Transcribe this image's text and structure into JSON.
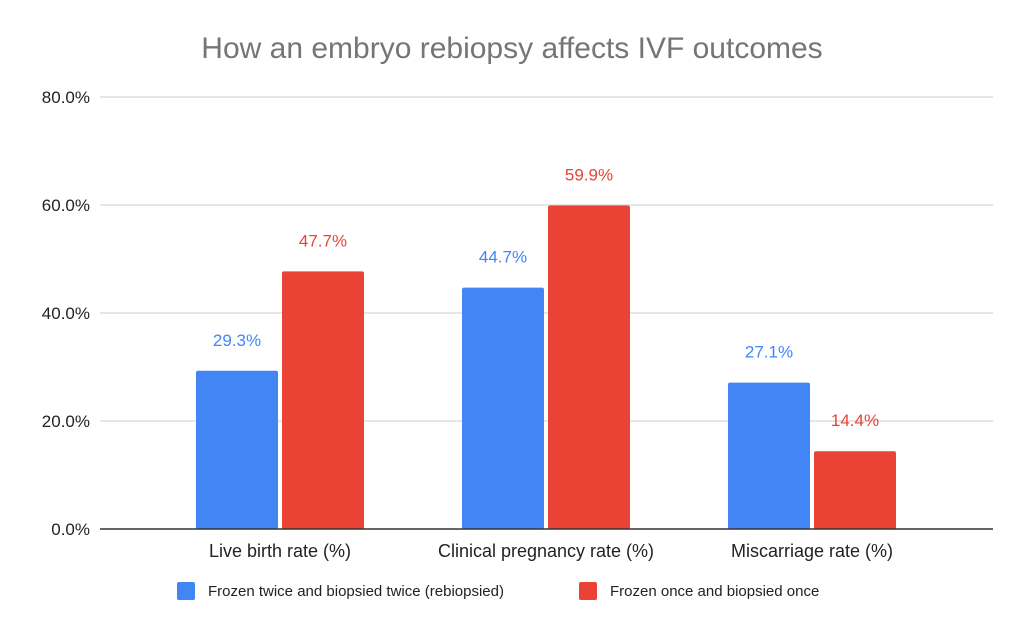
{
  "chart_data": {
    "type": "bar",
    "title": "How an embryo rebiopsy affects IVF outcomes",
    "xlabel": "",
    "ylabel": "",
    "categories": [
      "Live birth rate (%)",
      "Clinical pregnancy rate (%)",
      "Miscarriage rate (%)"
    ],
    "series": [
      {
        "name": "Frozen twice and biopsied twice (rebiopsied)",
        "color": "#4285f4",
        "values": [
          29.3,
          44.7,
          27.1
        ],
        "labels": [
          "29.3%",
          "44.7%",
          "27.1%"
        ]
      },
      {
        "name": "Frozen once and biopsied once",
        "color": "#ea4335",
        "values": [
          47.7,
          59.9,
          14.4
        ],
        "labels": [
          "47.7%",
          "59.9%",
          "14.4%"
        ]
      }
    ],
    "ylim": [
      0,
      80
    ],
    "yticks": [
      0,
      20,
      40,
      60,
      80
    ],
    "ytick_labels": [
      "0.0%",
      "20.0%",
      "40.0%",
      "60.0%",
      "80.0%"
    ],
    "grid": true,
    "legend_position": "bottom"
  }
}
